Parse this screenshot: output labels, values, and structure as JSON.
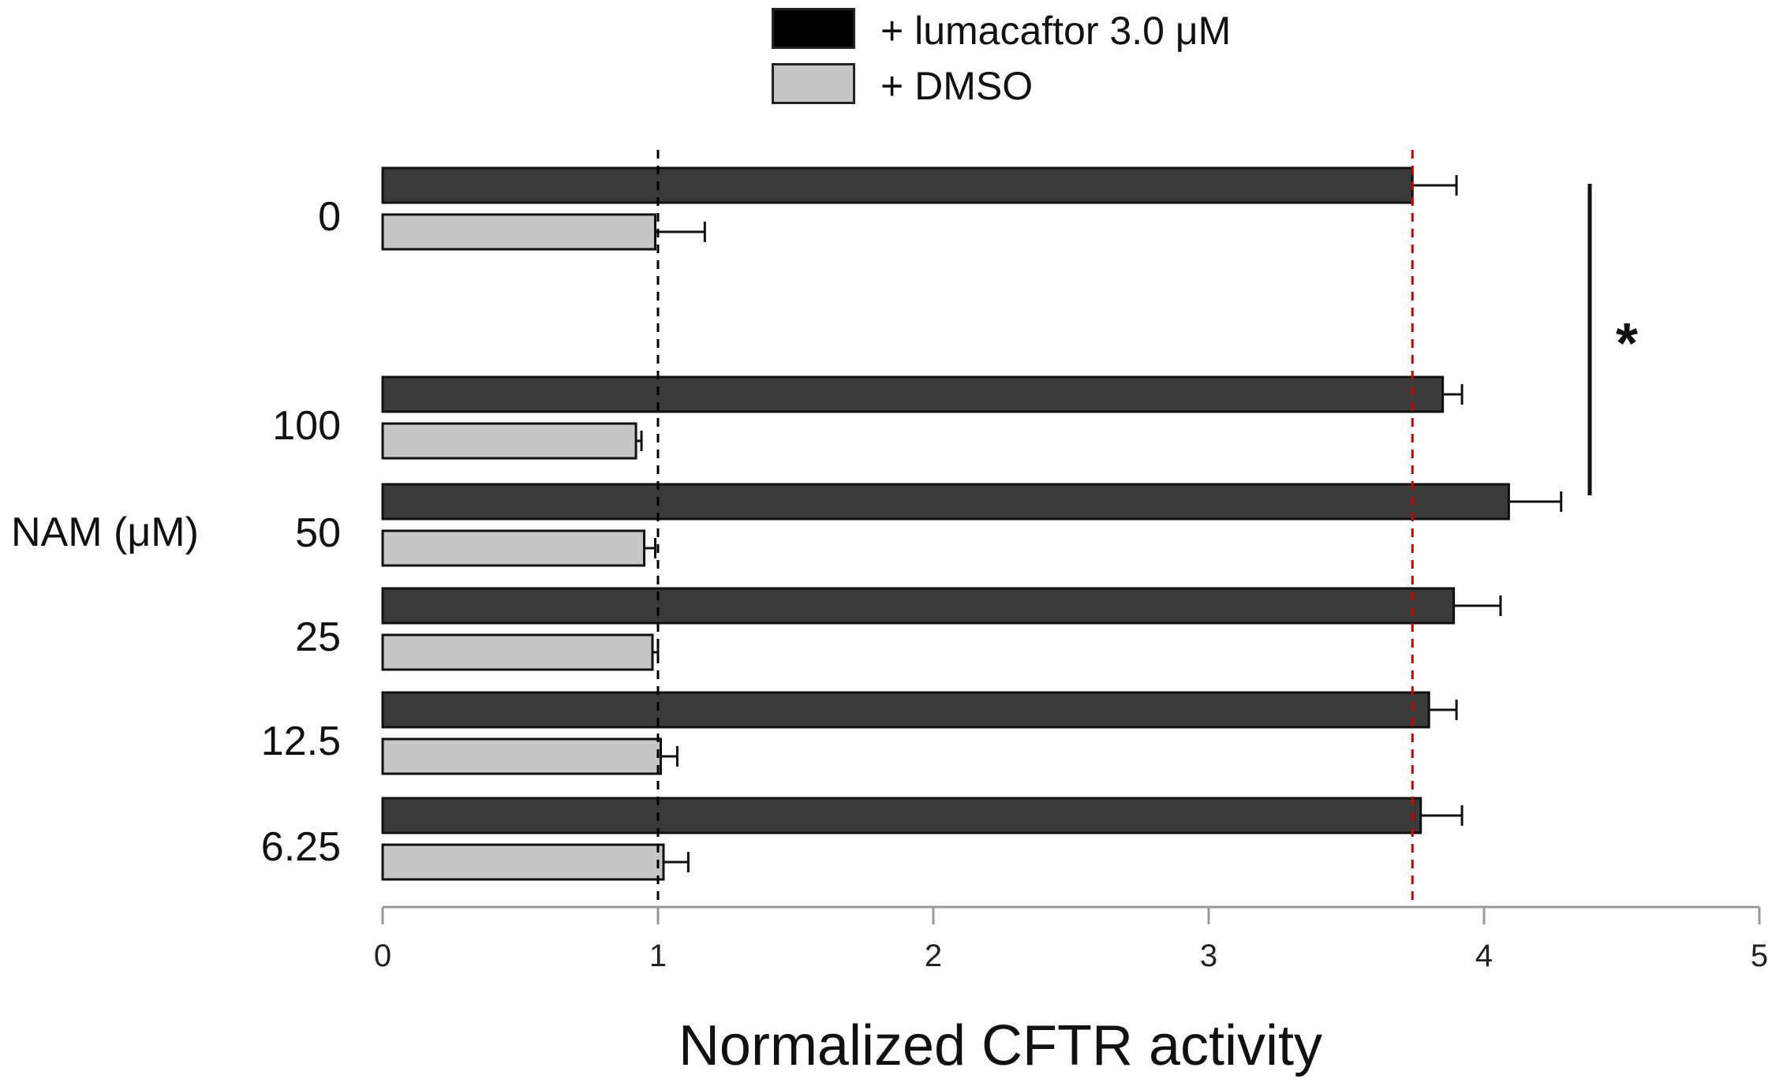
{
  "legend": [
    {
      "label": "+ lumacaftor 3.0 μM",
      "color": "#000000"
    },
    {
      "label": "+ DMSO",
      "color": "#c6c6c6"
    }
  ],
  "chart_data": {
    "type": "bar",
    "orientation": "horizontal",
    "title": "",
    "xlabel": "Normalized CFTR activity",
    "ylabel": "NAM (μM)",
    "xlim": [
      0,
      5
    ],
    "xticks": [
      "0",
      "1",
      "2",
      "3",
      "4",
      "5"
    ],
    "categories": [
      "0",
      "100",
      "50",
      "25",
      "12.5",
      "6.25"
    ],
    "series": [
      {
        "name": "+ lumacaftor 3.0 μM",
        "color": "#3a3a3a",
        "values": [
          3.74,
          3.85,
          4.09,
          3.89,
          3.8,
          3.77
        ],
        "errors": [
          0.16,
          0.07,
          0.19,
          0.17,
          0.1,
          0.15
        ]
      },
      {
        "name": "+ DMSO",
        "color": "#c6c6c6",
        "values": [
          0.99,
          0.92,
          0.95,
          0.98,
          1.01,
          1.02
        ],
        "errors": [
          0.18,
          0.02,
          0.04,
          0.02,
          0.06,
          0.09
        ]
      }
    ],
    "reference_lines": [
      {
        "x": 1.0,
        "color": "#000000",
        "style": "dashed"
      },
      {
        "x": 3.74,
        "color": "#cc0000",
        "style": "dashed"
      }
    ],
    "significance": {
      "label": "*",
      "from_category": "0",
      "to_category": "50"
    }
  }
}
